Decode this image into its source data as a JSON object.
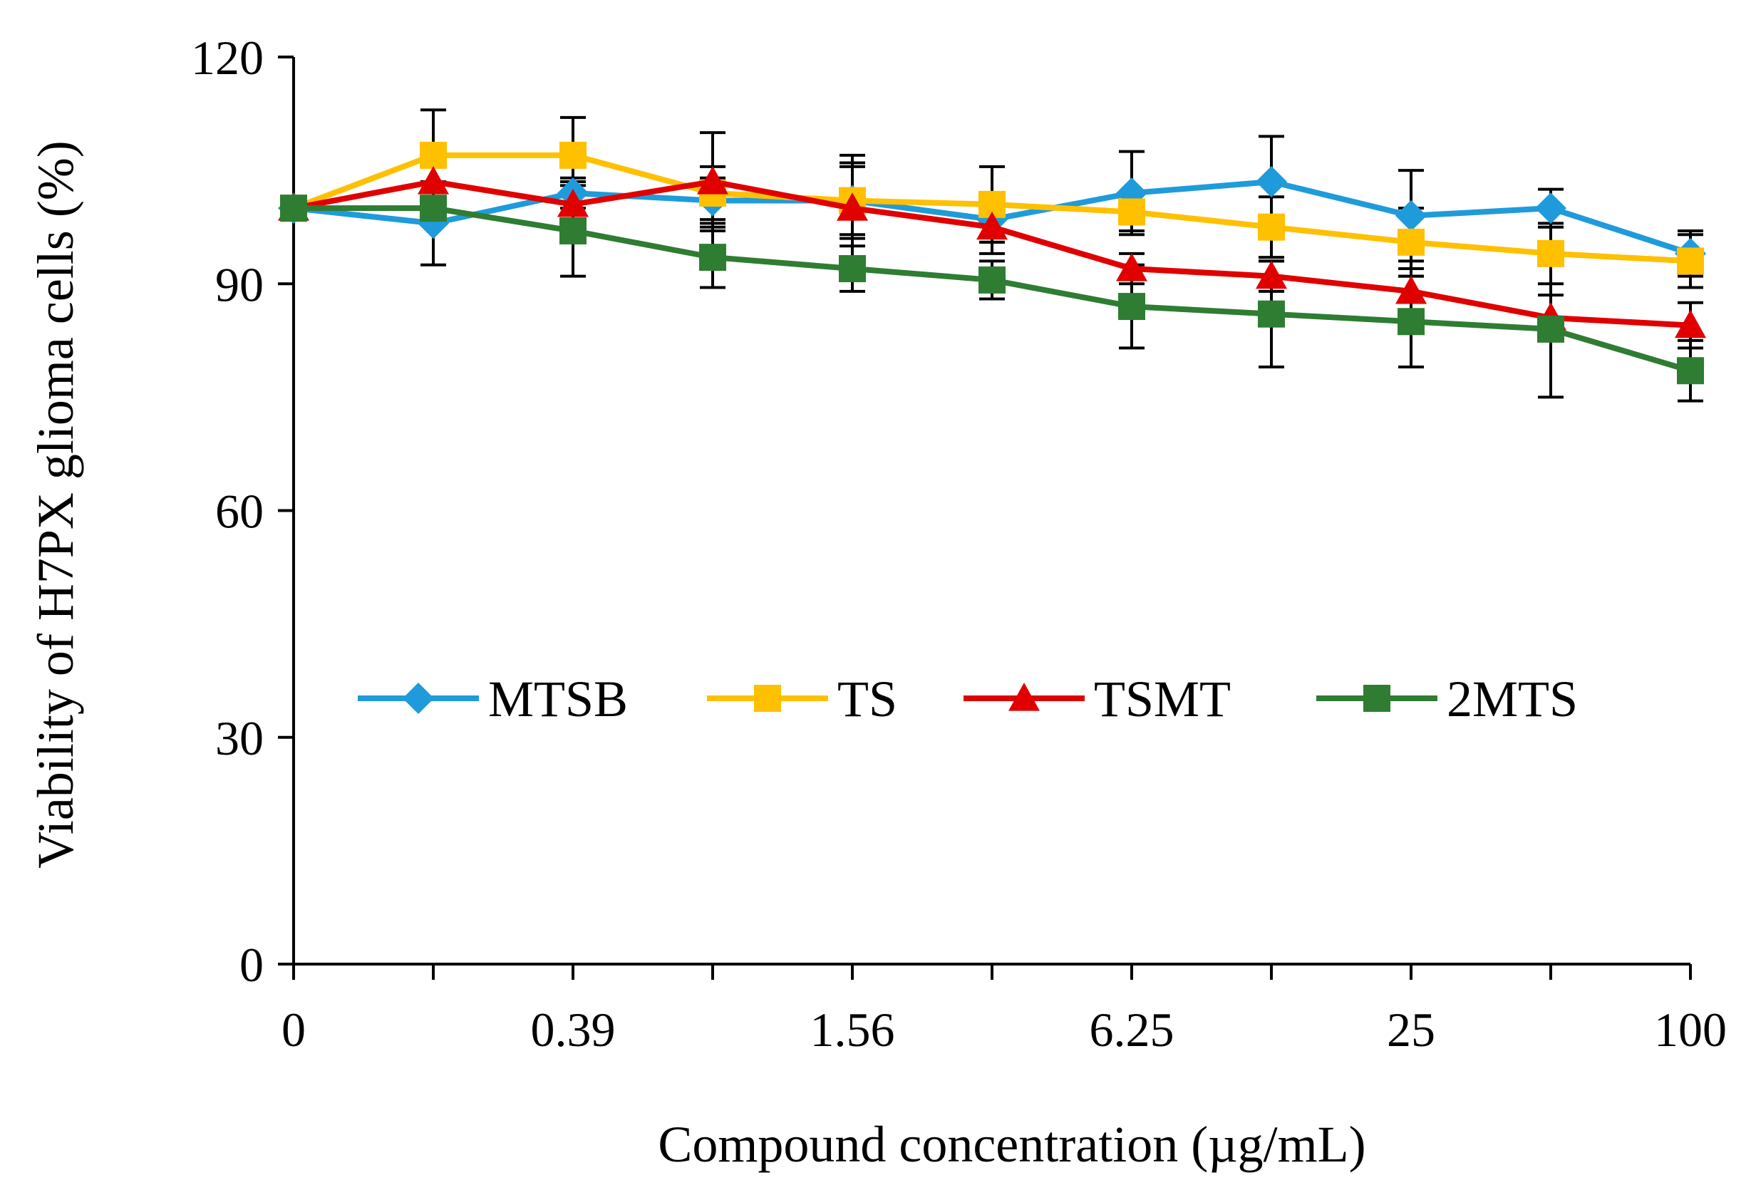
{
  "chart_data": {
    "type": "line",
    "title": "",
    "xlabel": "Compound concentration (µg/mL)",
    "ylabel": "Viability of H7PX glioma cells (%)",
    "ylim": [
      0,
      120
    ],
    "yticks": [
      0,
      30,
      60,
      90,
      120
    ],
    "x_positions": 11,
    "x_tick_labels": [
      {
        "index": 0,
        "label": "0"
      },
      {
        "index": 2,
        "label": "0.39"
      },
      {
        "index": 4,
        "label": "1.56"
      },
      {
        "index": 6,
        "label": "6.25"
      },
      {
        "index": 8,
        "label": "25"
      },
      {
        "index": 10,
        "label": "100"
      }
    ],
    "legend_position": "middle",
    "series": [
      {
        "name": "MTSB",
        "color": "#1F9BDB",
        "marker": "diamond",
        "values": [
          100,
          98,
          102,
          101,
          101,
          98.5,
          102,
          103.5,
          99,
          100,
          94
        ],
        "errors": [
          0,
          5.5,
          2,
          3,
          4.5,
          3,
          5.5,
          6,
          6,
          2.5,
          3
        ]
      },
      {
        "name": "TS",
        "color": "#FFC000",
        "marker": "square",
        "values": [
          100,
          107,
          107,
          102,
          101,
          100.5,
          99.5,
          97.5,
          95.5,
          94,
          93
        ],
        "errors": [
          0,
          6,
          5,
          3.5,
          5,
          5,
          2.5,
          4,
          4.5,
          4,
          3.5
        ]
      },
      {
        "name": "TSMT",
        "color": "#E00000",
        "marker": "triangle",
        "values": [
          100,
          103.5,
          100.5,
          103.5,
          100,
          97.5,
          92,
          91,
          89,
          85.5,
          84.5
        ],
        "errors": [
          0,
          3,
          3,
          6.5,
          7,
          3.5,
          2,
          2,
          3,
          3,
          3
        ]
      },
      {
        "name": "2MTS",
        "color": "#2E7D32",
        "marker": "square",
        "values": [
          100,
          100,
          97,
          93.5,
          92,
          90.5,
          87,
          86,
          85,
          84,
          78.5
        ],
        "errors": [
          0,
          0,
          6,
          4,
          3,
          2.5,
          5.5,
          7,
          6,
          9,
          4
        ]
      }
    ]
  }
}
